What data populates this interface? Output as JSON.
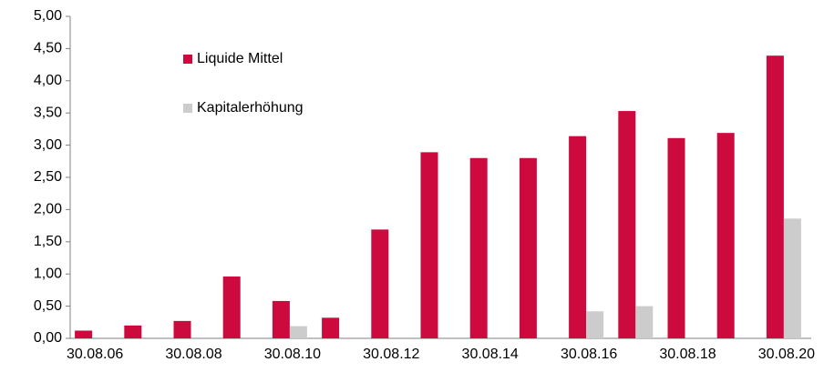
{
  "chart_data": {
    "type": "bar",
    "categories": [
      "30.08.06",
      null,
      "30.08.08",
      null,
      "30.08.10",
      null,
      "30.08.12",
      null,
      "30.08.14",
      null,
      "30.08.16",
      null,
      "30.08.18",
      null,
      "30.08.20"
    ],
    "series": [
      {
        "name": "Liquide Mittel",
        "color": "#cc0a3e",
        "values": [
          0.12,
          0.2,
          0.27,
          0.96,
          0.58,
          0.32,
          1.69,
          2.89,
          2.8,
          2.8,
          3.14,
          3.53,
          3.11,
          3.19,
          4.39
        ]
      },
      {
        "name": "Kapitalerhöhung",
        "color": "#cccccc",
        "values": [
          null,
          null,
          null,
          null,
          0.19,
          null,
          null,
          null,
          null,
          null,
          0.42,
          0.5,
          null,
          null,
          1.86
        ]
      }
    ],
    "ylim": [
      0,
      5
    ],
    "yticks": [
      {
        "value": 0,
        "label": "0,00"
      },
      {
        "value": 0.5,
        "label": "0,50"
      },
      {
        "value": 1,
        "label": "1,00"
      },
      {
        "value": 1.5,
        "label": "1,50"
      },
      {
        "value": 2,
        "label": "2,00"
      },
      {
        "value": 2.5,
        "label": "2,50"
      },
      {
        "value": 3,
        "label": "3,00"
      },
      {
        "value": 3.5,
        "label": "3,50"
      },
      {
        "value": 4,
        "label": "4,00"
      },
      {
        "value": 4.5,
        "label": "4,50"
      },
      {
        "value": 5,
        "label": "5,00"
      }
    ],
    "grid": false,
    "legend": "upper-left"
  }
}
